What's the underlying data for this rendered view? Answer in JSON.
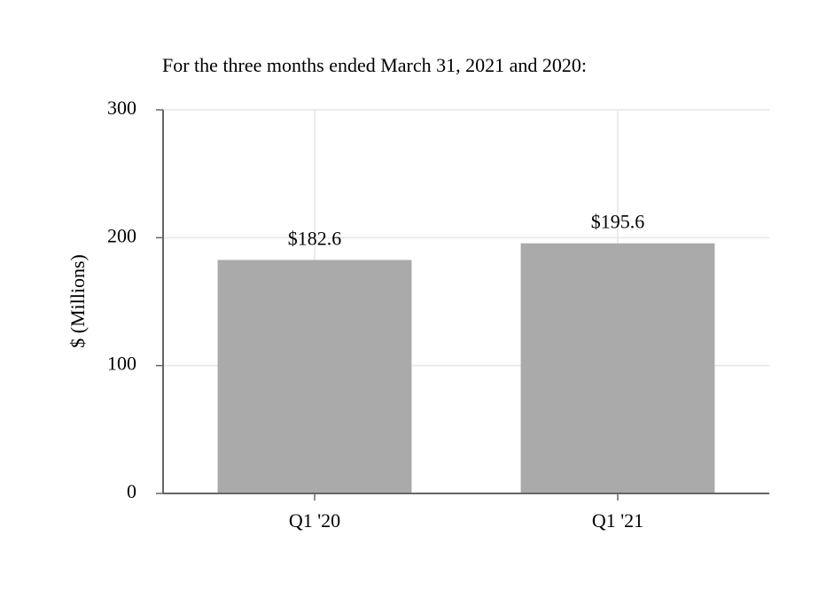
{
  "chart_data": {
    "type": "bar",
    "title": "For the three months ended March 31, 2021 and 2020:",
    "y_label": "$ (Millions)",
    "categories": [
      "Q1 '20",
      "Q1 '21"
    ],
    "values": [
      182.6,
      195.6
    ],
    "value_labels": [
      "$182.6",
      "$195.6"
    ],
    "color": "#aaaaaa",
    "ylim": [
      0,
      300
    ],
    "yticks": [
      0,
      100,
      200,
      300
    ],
    "grid": true
  }
}
